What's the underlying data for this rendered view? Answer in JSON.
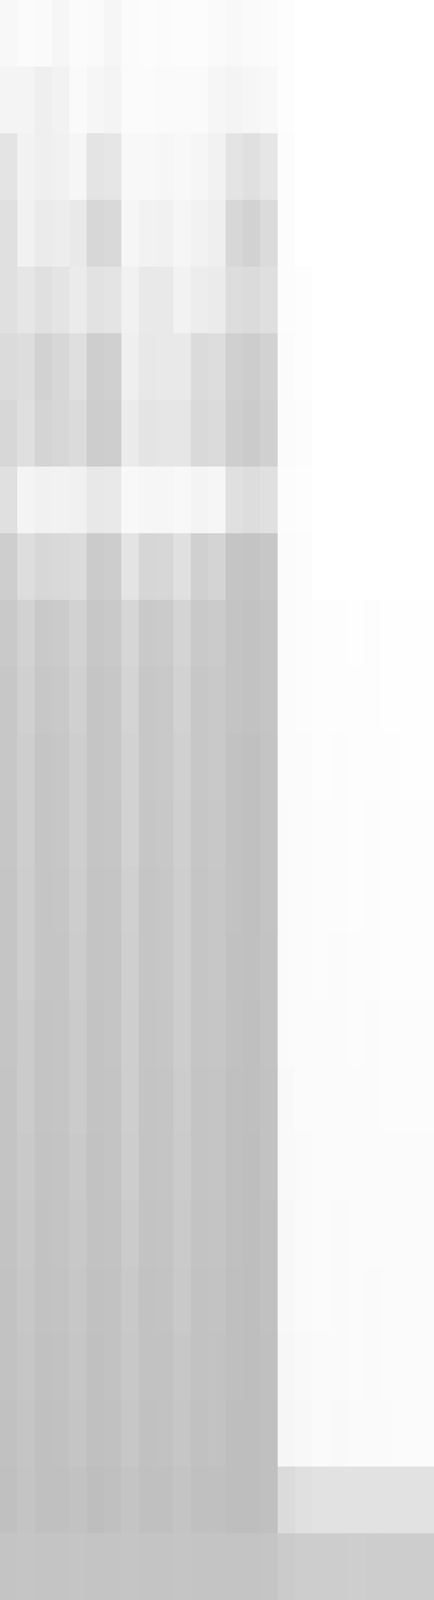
{
  "chart_data": {
    "type": "heatmap",
    "tick_labels": false,
    "grid": false,
    "color": "#a5a5a5",
    "colorbar_range": [
      0,
      100
    ],
    "cells": [
      [
        8,
        4,
        6,
        10,
        4,
        6,
        10,
        4,
        3,
        4,
        3,
        3,
        6,
        8,
        6,
        5,
        2,
        0,
        0,
        0,
        0,
        0,
        0,
        0,
        0
      ],
      [
        12,
        12,
        18,
        14,
        6,
        10,
        12,
        5,
        4,
        6,
        6,
        6,
        10,
        12,
        10,
        8,
        2,
        0,
        0,
        0,
        0,
        0,
        0,
        0,
        0
      ],
      [
        30,
        14,
        18,
        16,
        10,
        30,
        28,
        8,
        8,
        10,
        8,
        10,
        14,
        30,
        35,
        28,
        3,
        0,
        0,
        0,
        0,
        0,
        0,
        0,
        0
      ],
      [
        35,
        16,
        22,
        20,
        24,
        45,
        42,
        10,
        14,
        16,
        10,
        14,
        18,
        45,
        50,
        40,
        3,
        0,
        0,
        0,
        0,
        0,
        0,
        0,
        0
      ],
      [
        35,
        28,
        35,
        30,
        22,
        32,
        30,
        16,
        25,
        24,
        14,
        20,
        22,
        38,
        40,
        36,
        3,
        2,
        0,
        0,
        0,
        0,
        0,
        0,
        0
      ],
      [
        40,
        38,
        50,
        45,
        36,
        55,
        52,
        18,
        26,
        24,
        24,
        40,
        38,
        52,
        56,
        50,
        4,
        2,
        0,
        0,
        0,
        0,
        0,
        0,
        0
      ],
      [
        45,
        36,
        48,
        44,
        40,
        56,
        54,
        22,
        30,
        28,
        28,
        42,
        40,
        55,
        58,
        52,
        4,
        3,
        0,
        0,
        0,
        0,
        0,
        0,
        0
      ],
      [
        35,
        12,
        16,
        14,
        16,
        26,
        24,
        8,
        10,
        10,
        8,
        12,
        10,
        34,
        38,
        34,
        3,
        2,
        0,
        0,
        0,
        0,
        0,
        0,
        0
      ],
      [
        55,
        38,
        44,
        42,
        40,
        58,
        56,
        30,
        46,
        44,
        34,
        52,
        48,
        64,
        66,
        62,
        4,
        3,
        0,
        0,
        0,
        0,
        0,
        0,
        0
      ],
      [
        60,
        50,
        60,
        58,
        50,
        62,
        60,
        46,
        60,
        58,
        48,
        60,
        58,
        66,
        68,
        64,
        5,
        3,
        2,
        2,
        1,
        2,
        1,
        1,
        1
      ],
      [
        62,
        52,
        62,
        60,
        52,
        64,
        62,
        48,
        62,
        60,
        50,
        62,
        60,
        66,
        68,
        64,
        5,
        3,
        2,
        2,
        2,
        2,
        1,
        1,
        1
      ],
      [
        62,
        54,
        64,
        62,
        54,
        64,
        62,
        50,
        62,
        60,
        52,
        62,
        60,
        68,
        70,
        66,
        5,
        4,
        2,
        3,
        2,
        2,
        2,
        1,
        1
      ],
      [
        63,
        55,
        64,
        62,
        55,
        65,
        63,
        50,
        63,
        61,
        53,
        63,
        61,
        68,
        70,
        66,
        6,
        4,
        3,
        3,
        2,
        3,
        2,
        2,
        2
      ],
      [
        64,
        56,
        65,
        63,
        56,
        66,
        64,
        52,
        64,
        62,
        54,
        64,
        62,
        68,
        70,
        66,
        6,
        4,
        3,
        3,
        2,
        3,
        2,
        2,
        2
      ],
      [
        64,
        56,
        65,
        64,
        57,
        66,
        64,
        53,
        64,
        62,
        55,
        64,
        62,
        69,
        70,
        67,
        6,
        4,
        3,
        4,
        3,
        3,
        2,
        2,
        2
      ],
      [
        65,
        58,
        66,
        64,
        58,
        67,
        65,
        54,
        65,
        63,
        56,
        65,
        63,
        69,
        71,
        67,
        6,
        5,
        4,
        4,
        3,
        4,
        3,
        3,
        3
      ],
      [
        66,
        58,
        66,
        65,
        58,
        67,
        66,
        55,
        66,
        64,
        57,
        66,
        64,
        70,
        71,
        68,
        7,
        5,
        4,
        5,
        4,
        4,
        3,
        3,
        3
      ],
      [
        66,
        60,
        67,
        66,
        60,
        68,
        66,
        56,
        66,
        65,
        58,
        66,
        65,
        70,
        72,
        68,
        7,
        6,
        5,
        5,
        4,
        5,
        4,
        4,
        4
      ],
      [
        67,
        61,
        68,
        66,
        61,
        68,
        67,
        58,
        67,
        66,
        59,
        67,
        66,
        70,
        72,
        69,
        8,
        6,
        5,
        6,
        5,
        5,
        4,
        4,
        4
      ],
      [
        68,
        62,
        68,
        67,
        62,
        69,
        68,
        60,
        68,
        67,
        60,
        68,
        67,
        71,
        72,
        69,
        8,
        6,
        5,
        6,
        5,
        6,
        5,
        4,
        4
      ],
      [
        68,
        63,
        69,
        68,
        63,
        70,
        68,
        61,
        68,
        68,
        62,
        68,
        68,
        71,
        72,
        70,
        9,
        7,
        6,
        6,
        5,
        6,
        5,
        5,
        5
      ],
      [
        69,
        64,
        70,
        69,
        64,
        70,
        69,
        62,
        69,
        68,
        63,
        69,
        68,
        72,
        72,
        70,
        10,
        8,
        6,
        7,
        6,
        6,
        6,
        5,
        5
      ],
      [
        70,
        66,
        70,
        70,
        68,
        72,
        70,
        66,
        70,
        70,
        66,
        70,
        70,
        72,
        72,
        70,
        40,
        34,
        32,
        32,
        32,
        32,
        32,
        32,
        32
      ],
      [
        66,
        64,
        66,
        66,
        64,
        66,
        66,
        64,
        66,
        66,
        64,
        66,
        66,
        66,
        66,
        64,
        58,
        56,
        56,
        56,
        55,
        56,
        56,
        56,
        56
      ]
    ]
  }
}
